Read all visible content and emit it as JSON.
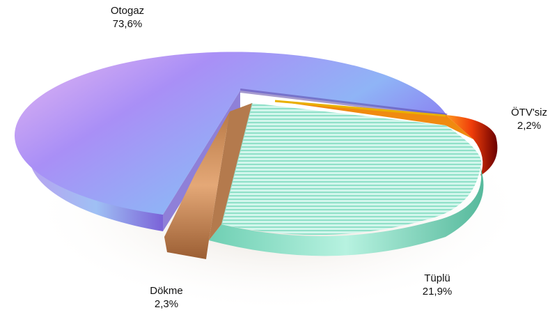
{
  "chart_data": {
    "type": "pie",
    "style": "3d-exploded",
    "slices": [
      {
        "name": "Otogaz",
        "value_label": "73,6%",
        "value": 73.6,
        "color": "#9b7ff0"
      },
      {
        "name": "ÖTV'siz",
        "value_label": "2,2%",
        "value": 2.2,
        "color": "#e8410a"
      },
      {
        "name": "Tüplü",
        "value_label": "21,9%",
        "value": 21.9,
        "color": "#a6ead8"
      },
      {
        "name": "Dökme",
        "value_label": "2,3%",
        "value": 2.3,
        "color": "#c98a57"
      }
    ]
  }
}
